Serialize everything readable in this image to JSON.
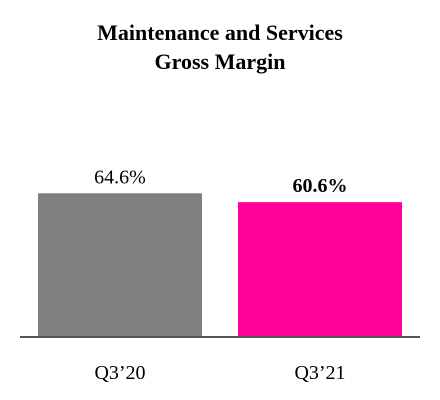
{
  "chart_data": {
    "type": "bar",
    "title_lines": [
      "Maintenance and Services",
      "Gross Margin"
    ],
    "categories": [
      "Q3’20",
      "Q3’21"
    ],
    "values": [
      64.6,
      60.6
    ],
    "value_labels": [
      "64.6%",
      "60.6%"
    ],
    "value_label_bold": [
      false,
      true
    ],
    "bar_colors": [
      "#808080",
      "#ff0099"
    ],
    "xlabel": "",
    "ylabel": "",
    "ylim": [
      0,
      100
    ],
    "grid": false,
    "legend": "none"
  }
}
